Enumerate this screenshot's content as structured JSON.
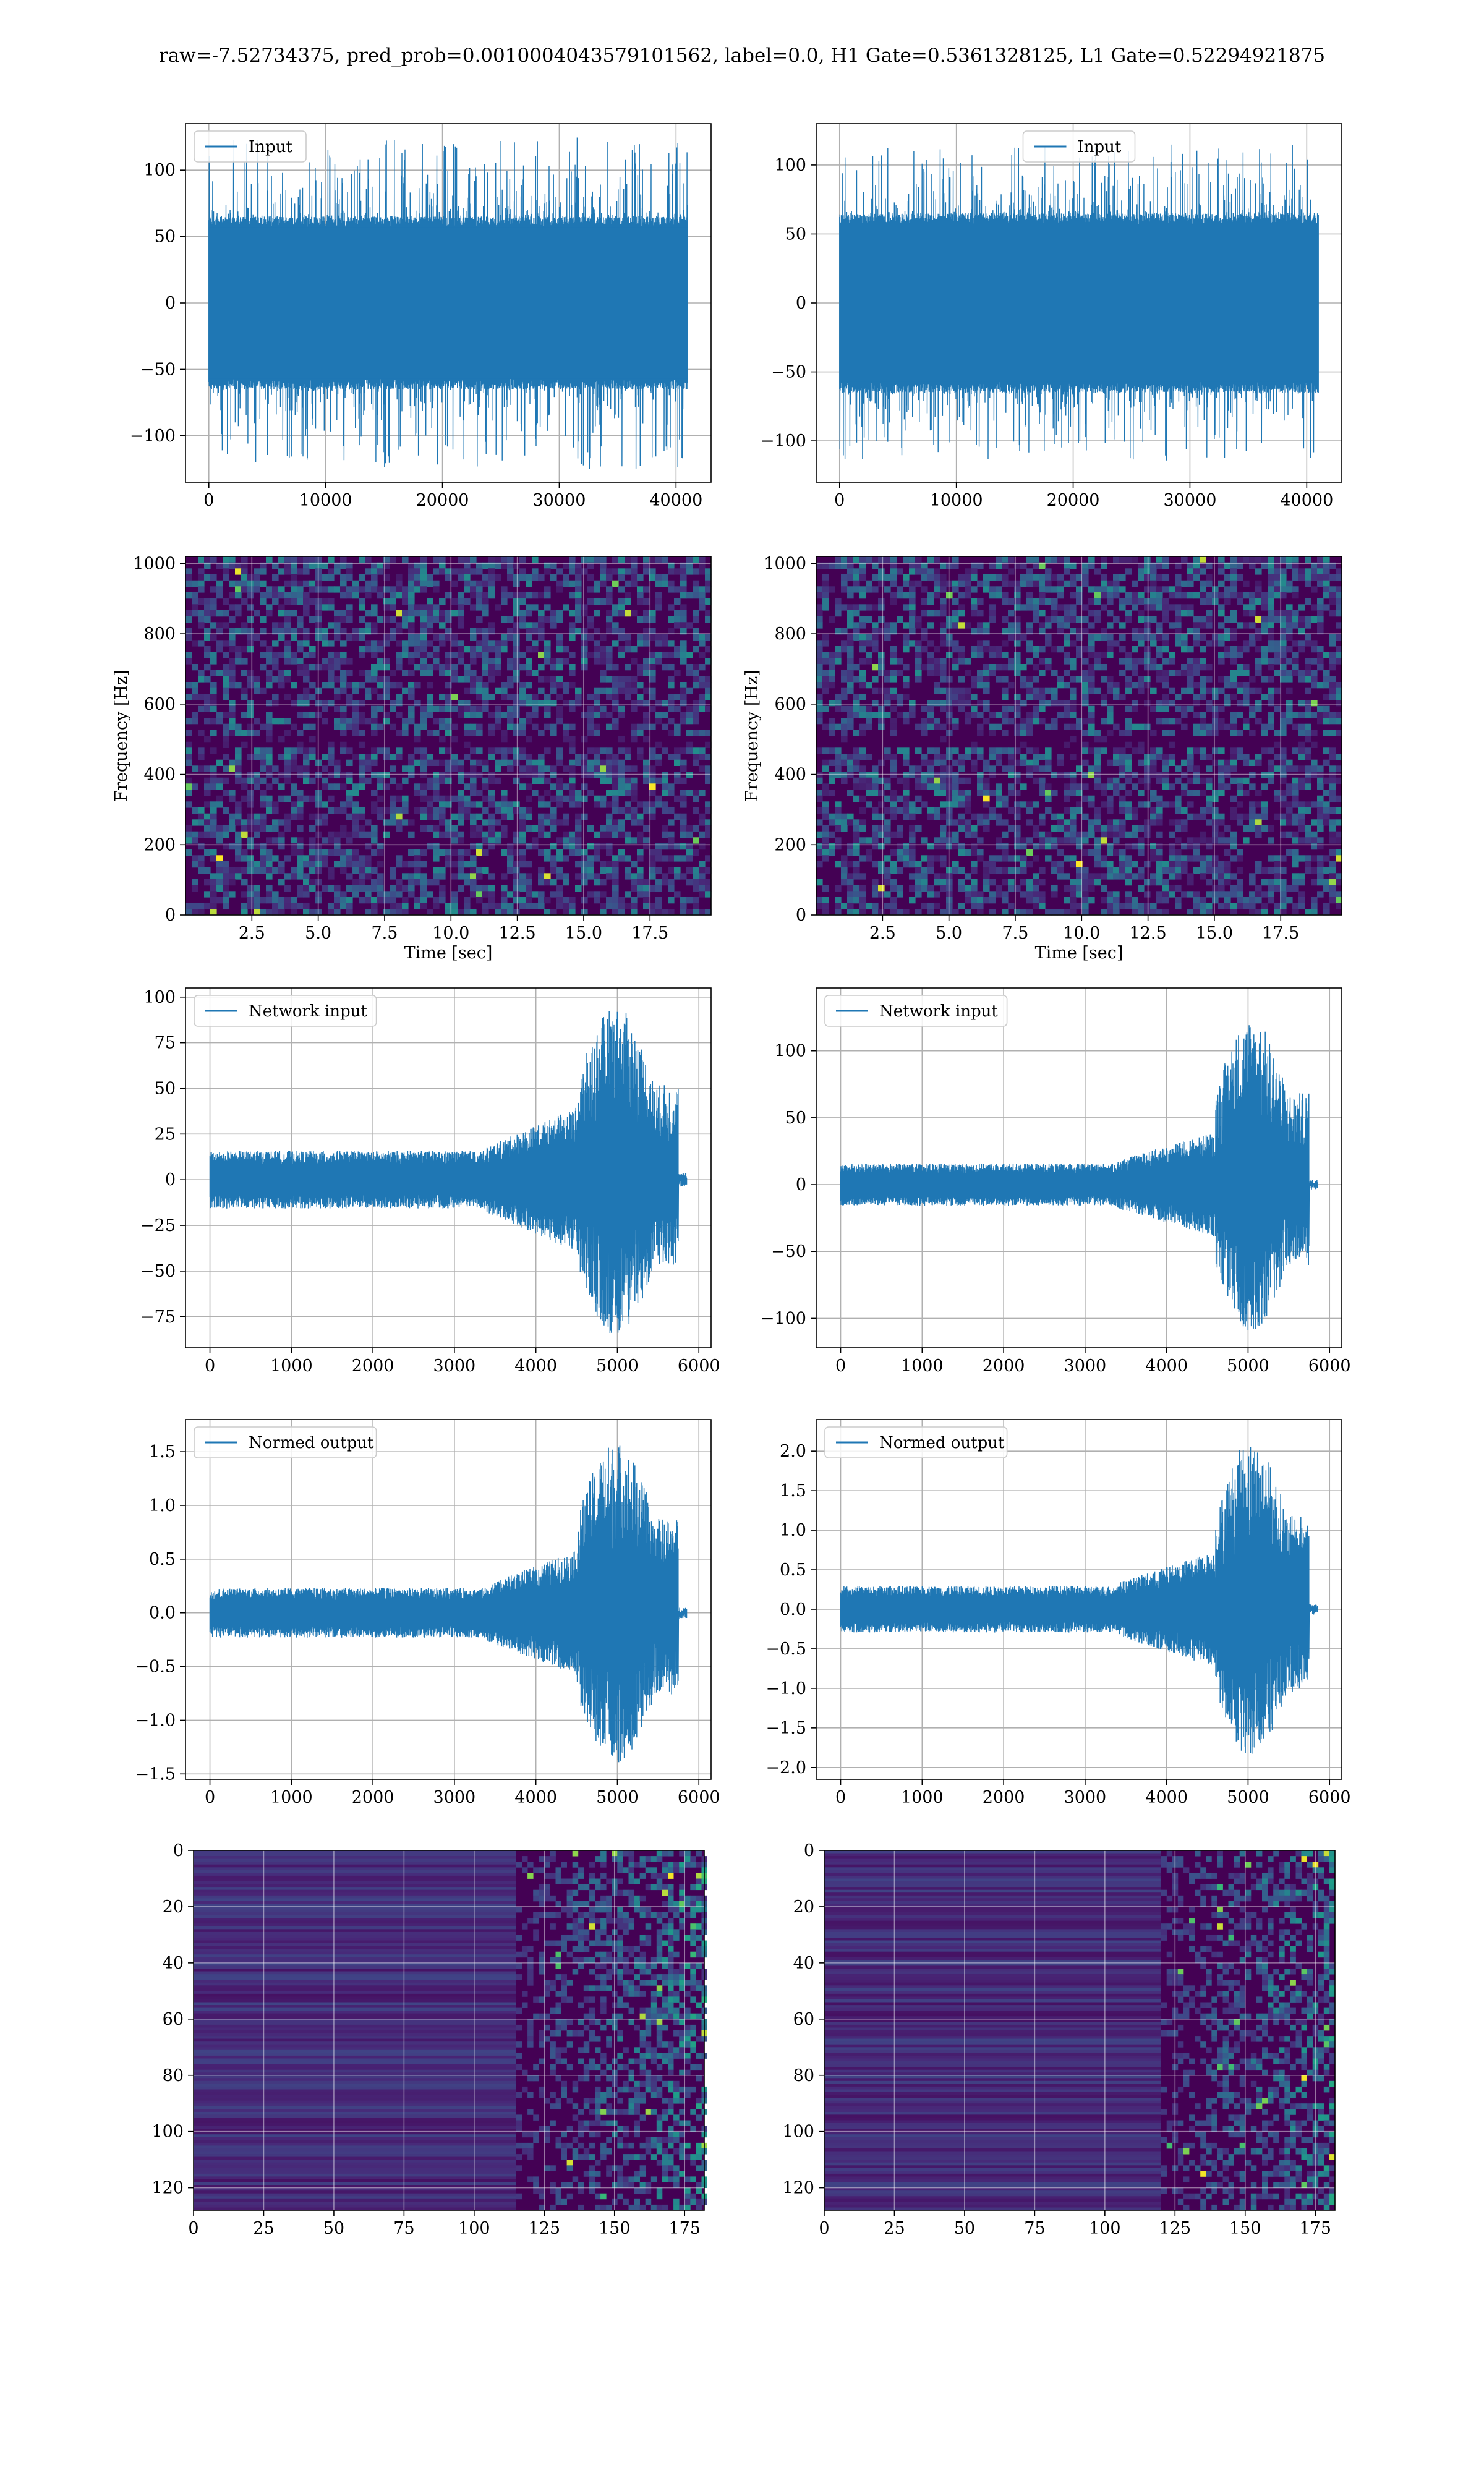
{
  "title": "raw=-7.52734375, pred_prob=0.0010004043579101562, label=0.0, H1 Gate=0.5361328125, L1 Gate=0.52294921875",
  "colors": {
    "line": "#1f77b4",
    "grid": "#b0b0b0",
    "spec_low": "#440154",
    "spec_mid": "#21918c",
    "spec_high": "#fde725"
  },
  "chart_data": [
    {
      "type": "line",
      "panel": "row1-left",
      "series": [
        {
          "name": "Input"
        }
      ],
      "legend": "upper-left",
      "xlim": [
        -2000,
        43000
      ],
      "ylim": [
        -135,
        135
      ],
      "xticks": [
        0,
        10000,
        20000,
        30000,
        40000
      ],
      "yticks": [
        -100,
        -50,
        0,
        50,
        100
      ],
      "x_range": [
        0,
        41000
      ],
      "envelope": 65,
      "spike_max": 125,
      "spike_min": -125,
      "grid": true
    },
    {
      "type": "line",
      "panel": "row1-right",
      "series": [
        {
          "name": "Input"
        }
      ],
      "legend": "upper-center",
      "xlim": [
        -2000,
        43000
      ],
      "ylim": [
        -130,
        130
      ],
      "xticks": [
        0,
        10000,
        20000,
        30000,
        40000
      ],
      "yticks": [
        -100,
        -50,
        0,
        50,
        100
      ],
      "x_range": [
        0,
        41000
      ],
      "envelope": 65,
      "spike_max": 115,
      "spike_min": -115,
      "grid": true
    },
    {
      "type": "heatmap",
      "panel": "row2-left",
      "xlabel": "Time [sec]",
      "ylabel": "Frequency [Hz]",
      "xlim": [
        0,
        19.8
      ],
      "ylim": [
        0,
        1020
      ],
      "xticks": [
        2.5,
        5.0,
        7.5,
        10.0,
        12.5,
        15.0,
        17.5
      ],
      "yticks": [
        0,
        200,
        400,
        600,
        800,
        1000
      ],
      "grid": true
    },
    {
      "type": "heatmap",
      "panel": "row2-right",
      "xlabel": "Time [sec]",
      "ylabel": "Frequency [Hz]",
      "xlim": [
        0,
        19.8
      ],
      "ylim": [
        0,
        1020
      ],
      "xticks": [
        2.5,
        5.0,
        7.5,
        10.0,
        12.5,
        15.0,
        17.5
      ],
      "yticks": [
        0,
        200,
        400,
        600,
        800,
        1000
      ],
      "grid": true
    },
    {
      "type": "line",
      "panel": "row3-left",
      "series": [
        {
          "name": "Network input"
        }
      ],
      "legend": "upper-left",
      "xlim": [
        -300,
        6150
      ],
      "ylim": [
        -92,
        105
      ],
      "xticks": [
        0,
        1000,
        2000,
        3000,
        4000,
        5000,
        6000
      ],
      "yticks": [
        -75,
        -50,
        -25,
        0,
        25,
        50,
        75,
        100
      ],
      "x_range": [
        0,
        5850
      ],
      "noise_amp": 15,
      "burst_start": 4500,
      "burst_end": 5750,
      "burst_max": 95,
      "burst_min": -85,
      "grid": true
    },
    {
      "type": "line",
      "panel": "row3-right",
      "series": [
        {
          "name": "Network input"
        }
      ],
      "legend": "upper-left",
      "xlim": [
        -300,
        6150
      ],
      "ylim": [
        -122,
        147
      ],
      "xticks": [
        0,
        1000,
        2000,
        3000,
        4000,
        5000,
        6000
      ],
      "yticks": [
        -100,
        -50,
        0,
        50,
        100
      ],
      "x_range": [
        0,
        5850
      ],
      "noise_amp": 15,
      "burst_start": 4600,
      "burst_end": 5750,
      "burst_max": 125,
      "burst_min": -110,
      "grid": true
    },
    {
      "type": "line",
      "panel": "row4-left",
      "series": [
        {
          "name": "Normed output"
        }
      ],
      "legend": "upper-left",
      "xlim": [
        -300,
        6150
      ],
      "ylim": [
        -1.55,
        1.8
      ],
      "xticks": [
        0,
        1000,
        2000,
        3000,
        4000,
        5000,
        6000
      ],
      "yticks": [
        -1.5,
        -1.0,
        -0.5,
        0.0,
        0.5,
        1.0,
        1.5
      ],
      "x_range": [
        0,
        5850
      ],
      "noise_amp": 0.22,
      "burst_start": 4500,
      "burst_end": 5750,
      "burst_max": 1.6,
      "burst_min": -1.4,
      "grid": true
    },
    {
      "type": "line",
      "panel": "row4-right",
      "series": [
        {
          "name": "Normed output"
        }
      ],
      "legend": "upper-left",
      "xlim": [
        -300,
        6150
      ],
      "ylim": [
        -2.15,
        2.4
      ],
      "xticks": [
        0,
        1000,
        2000,
        3000,
        4000,
        5000,
        6000
      ],
      "yticks": [
        -2.0,
        -1.5,
        -1.0,
        -0.5,
        0.0,
        0.5,
        1.0,
        1.5,
        2.0
      ],
      "x_range": [
        0,
        5850
      ],
      "noise_amp": 0.28,
      "burst_start": 4600,
      "burst_end": 5750,
      "burst_max": 2.15,
      "burst_min": -1.9,
      "grid": true
    },
    {
      "type": "heatmap",
      "panel": "row5-left",
      "xlim": [
        0,
        182
      ],
      "ylim": [
        128,
        0
      ],
      "xticks": [
        0,
        25,
        50,
        75,
        100,
        125,
        150,
        175
      ],
      "yticks": [
        0,
        20,
        40,
        60,
        80,
        100,
        120
      ],
      "activity_start": 115,
      "grid": true
    },
    {
      "type": "heatmap",
      "panel": "row5-right",
      "xlim": [
        0,
        182
      ],
      "ylim": [
        128,
        0
      ],
      "xticks": [
        0,
        25,
        50,
        75,
        100,
        125,
        150,
        175
      ],
      "yticks": [
        0,
        20,
        40,
        60,
        80,
        100,
        120
      ],
      "activity_start": 120,
      "grid": true
    }
  ]
}
